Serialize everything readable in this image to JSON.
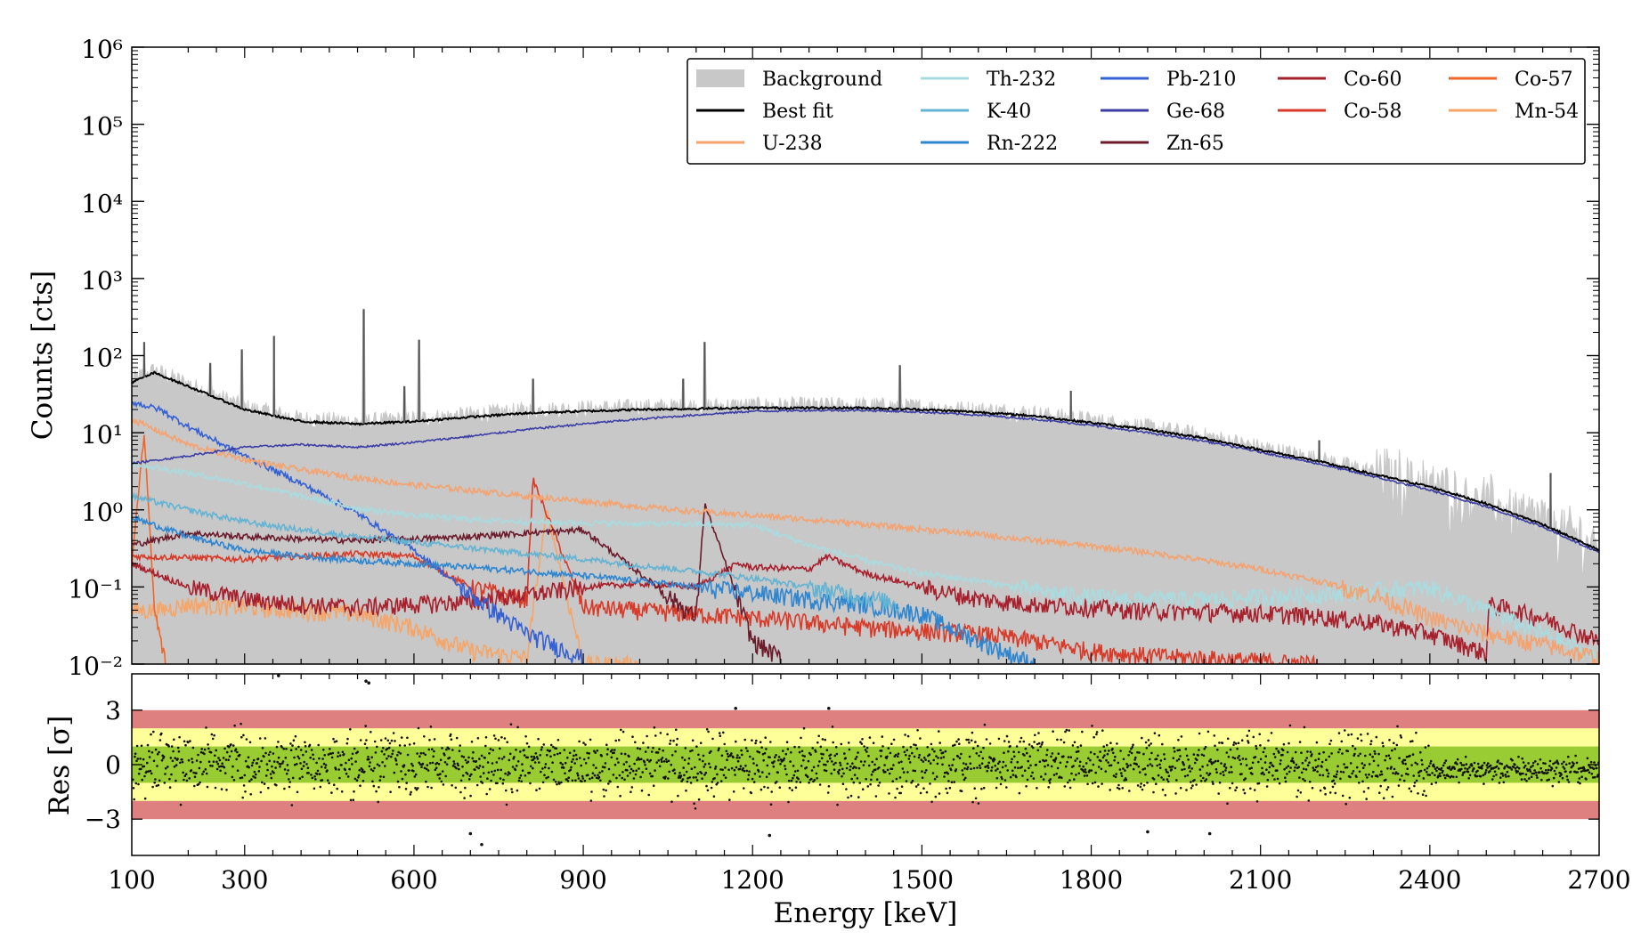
{
  "colors": {
    "background_fill": "#c8c8c8",
    "band_3sigma": "#de8080",
    "band_2sigma": "#ffff99",
    "band_1sigma": "#99cc33"
  },
  "axes_text": {
    "main_ylabel": "Counts [cts]",
    "res_ylabel": "Res [σ]",
    "xlabel": "Energy [keV]"
  },
  "chart_data": [
    {
      "type": "line",
      "title": "",
      "xlabel": "",
      "ylabel": "Counts [cts]",
      "xlim": [
        100,
        2700
      ],
      "ylim": [
        0.01,
        1000000
      ],
      "yscale": "log",
      "y_tick_labels": [
        "10⁻²",
        "10⁻¹",
        "10⁰",
        "10¹",
        "10²",
        "10³",
        "10⁴",
        "10⁵",
        "10⁶"
      ],
      "x_ticks": [
        100,
        300,
        600,
        900,
        1200,
        1500,
        1800,
        2100,
        2400,
        2700
      ],
      "grid": false,
      "legend_position": "top-right",
      "legend": [
        {
          "name": "Background",
          "color": "#c8c8c8",
          "style": "fill"
        },
        {
          "name": "Best fit",
          "color": "#000000",
          "style": "line"
        },
        {
          "name": "U-238",
          "color": "#f5a26e",
          "style": "line"
        },
        {
          "name": "Th-232",
          "color": "#a8dce0",
          "style": "line"
        },
        {
          "name": "K-40",
          "color": "#63b3d3",
          "style": "line"
        },
        {
          "name": "Rn-222",
          "color": "#2e86d1",
          "style": "line"
        },
        {
          "name": "Pb-210",
          "color": "#3560d4",
          "style": "line"
        },
        {
          "name": "Ge-68",
          "color": "#3c3ea6",
          "style": "line"
        },
        {
          "name": "Zn-65",
          "color": "#6b1a2a",
          "style": "line"
        },
        {
          "name": "Co-60",
          "color": "#a81f2c",
          "style": "line"
        },
        {
          "name": "Co-58",
          "color": "#d93a28",
          "style": "line"
        },
        {
          "name": "Co-57",
          "color": "#f0652a",
          "style": "line"
        },
        {
          "name": "Mn-54",
          "color": "#f7a567",
          "style": "line"
        }
      ],
      "series": [
        {
          "name": "Best fit",
          "x": [
            100,
            140,
            200,
            300,
            400,
            500,
            600,
            700,
            800,
            900,
            1000,
            1100,
            1200,
            1300,
            1400,
            1500,
            1600,
            1700,
            1800,
            1900,
            2000,
            2100,
            2200,
            2300,
            2400,
            2500,
            2600,
            2700
          ],
          "y": [
            45,
            60,
            40,
            20,
            14,
            13,
            14,
            16,
            18,
            19,
            20,
            20.5,
            21,
            21,
            21,
            20,
            18.5,
            16.5,
            13.5,
            11,
            8.5,
            6,
            4.3,
            2.9,
            2,
            1.2,
            0.65,
            0.3
          ]
        },
        {
          "name": "Ge-68",
          "x": [
            100,
            200,
            300,
            400,
            500,
            600,
            700,
            800,
            900,
            1000,
            1100,
            1200,
            1300,
            1400,
            1500,
            1600,
            1700,
            1800,
            1900,
            2000,
            2100,
            2200,
            2300,
            2400,
            2500,
            2600,
            2700
          ],
          "y": [
            4,
            5,
            6.5,
            7,
            6.5,
            7.5,
            9,
            11,
            13,
            15,
            17,
            19,
            19.5,
            19.5,
            18.5,
            17,
            15,
            12.5,
            10,
            7.8,
            5.6,
            4,
            2.7,
            1.8,
            1.1,
            0.6,
            0.28
          ]
        },
        {
          "name": "U-238",
          "x": [
            100,
            200,
            300,
            400,
            500,
            600,
            700,
            800,
            900,
            1000,
            1100,
            1200,
            1300,
            1400,
            1500,
            1600,
            1700,
            1800,
            1900,
            2000,
            2100,
            2200,
            2300,
            2400,
            2500,
            2600,
            2700
          ],
          "y": [
            15,
            7,
            4.5,
            3.3,
            2.6,
            2.1,
            1.8,
            1.5,
            1.3,
            1.1,
            0.95,
            0.85,
            0.75,
            0.65,
            0.56,
            0.48,
            0.4,
            0.34,
            0.28,
            0.22,
            0.17,
            0.12,
            0.08,
            0.04,
            0.025,
            0.018,
            0.012
          ]
        },
        {
          "name": "Th-232",
          "x": [
            100,
            200,
            300,
            400,
            500,
            600,
            700,
            800,
            900,
            1000,
            1100,
            1200,
            1300,
            1400,
            1500,
            1600,
            1700,
            1800,
            1900,
            2000,
            2100,
            2200,
            2300,
            2400,
            2500,
            2600,
            2700
          ],
          "y": [
            4,
            3,
            2.2,
            1.5,
            1.05,
            0.85,
            0.75,
            0.7,
            0.68,
            0.66,
            0.65,
            0.64,
            0.35,
            0.22,
            0.15,
            0.12,
            0.09,
            0.075,
            0.07,
            0.07,
            0.075,
            0.08,
            0.09,
            0.1,
            0.05,
            0.025,
            0.012
          ]
        },
        {
          "name": "K-40",
          "x": [
            100,
            200,
            300,
            400,
            500,
            600,
            700,
            800,
            900,
            1000,
            1100,
            1200,
            1300,
            1400,
            1460,
            1600,
            1800,
            2000,
            2100,
            2200,
            2300,
            2400,
            2500,
            2600,
            2700
          ],
          "y": [
            1.5,
            1.0,
            0.7,
            0.55,
            0.45,
            0.38,
            0.32,
            0.27,
            0.23,
            0.19,
            0.16,
            0.13,
            0.1,
            0.075,
            0.06,
            null,
            null,
            null,
            null,
            null,
            null,
            null,
            null,
            null,
            null
          ]
        },
        {
          "name": "Rn-222",
          "x": [
            100,
            200,
            300,
            400,
            500,
            600,
            700,
            800,
            900,
            1000,
            1100,
            1200,
            1300,
            1400,
            1500,
            1600,
            1700,
            1800,
            1900,
            2000,
            2100,
            2200,
            2300,
            2400
          ],
          "y": [
            0.8,
            0.45,
            0.3,
            0.25,
            0.22,
            0.2,
            0.18,
            0.16,
            0.14,
            0.12,
            0.1,
            0.085,
            0.07,
            0.06,
            0.045,
            0.02,
            0.01,
            null,
            null,
            null,
            null,
            null,
            null,
            null
          ]
        },
        {
          "name": "Pb-210",
          "x": [
            100,
            150,
            200,
            300,
            400,
            500,
            600,
            700,
            800,
            900
          ],
          "y": [
            25,
            20,
            12,
            5,
            2.2,
            0.9,
            0.3,
            0.08,
            0.025,
            0.012
          ]
        },
        {
          "name": "Zn-65",
          "x": [
            100,
            200,
            300,
            400,
            500,
            600,
            700,
            800,
            900,
            1000,
            1100,
            1115,
            1200,
            1250
          ],
          "y": [
            0.35,
            0.5,
            0.45,
            0.42,
            0.4,
            0.42,
            0.45,
            0.5,
            0.55,
            0.15,
            0.04,
            1.2,
            0.02,
            0.012
          ]
        },
        {
          "name": "Co-60",
          "x": [
            100,
            200,
            300,
            400,
            500,
            600,
            700,
            800,
            900,
            1000,
            1100,
            1173,
            1200,
            1300,
            1332,
            1400,
            1500,
            1600,
            1700,
            1800,
            1900,
            2000,
            2100,
            2200,
            2300,
            2400,
            2500,
            2505,
            2600,
            2700
          ],
          "y": [
            0.2,
            0.1,
            0.07,
            0.06,
            0.055,
            0.06,
            0.065,
            0.08,
            0.1,
            0.11,
            0.1,
            0.2,
            0.18,
            0.17,
            0.25,
            0.15,
            0.1,
            0.07,
            0.06,
            0.055,
            0.05,
            0.048,
            0.046,
            0.042,
            0.035,
            0.025,
            0.014,
            0.06,
            0.04,
            0.02
          ]
        },
        {
          "name": "Co-58",
          "x": [
            100,
            200,
            300,
            400,
            500,
            600,
            700,
            800,
            811,
            900,
            1000,
            1100,
            1200,
            1300,
            1400,
            1500,
            1600,
            1700,
            1800,
            1900,
            2000,
            2100,
            2200
          ],
          "y": [
            0.25,
            0.24,
            0.23,
            0.25,
            0.27,
            0.25,
            0.1,
            0.07,
            2.5,
            0.055,
            0.05,
            0.045,
            0.04,
            0.035,
            0.03,
            0.027,
            0.025,
            0.02,
            0.015,
            0.013,
            0.012,
            0.011,
            0.01
          ]
        },
        {
          "name": "Co-57",
          "x": [
            100,
            122,
            140,
            160
          ],
          "y": [
            0.2,
            10,
            0.05,
            0.01
          ]
        },
        {
          "name": "Mn-54",
          "x": [
            100,
            150,
            200,
            300,
            400,
            500,
            600,
            700,
            800,
            835,
            900,
            1000
          ],
          "y": [
            0.05,
            0.05,
            0.06,
            0.055,
            0.05,
            0.045,
            0.03,
            0.015,
            0.012,
            1.0,
            0.01,
            0.01
          ]
        }
      ],
      "peaks": [
        {
          "energy": 122,
          "counts": 150
        },
        {
          "energy": 239,
          "counts": 80
        },
        {
          "energy": 295,
          "counts": 120
        },
        {
          "energy": 352,
          "counts": 180
        },
        {
          "energy": 511,
          "counts": 400
        },
        {
          "energy": 583,
          "counts": 40
        },
        {
          "energy": 609,
          "counts": 160
        },
        {
          "energy": 811,
          "counts": 50
        },
        {
          "energy": 1077,
          "counts": 50
        },
        {
          "energy": 1115,
          "counts": 150
        },
        {
          "energy": 1461,
          "counts": 75
        },
        {
          "energy": 1764,
          "counts": 35
        },
        {
          "energy": 2204,
          "counts": 8
        },
        {
          "energy": 2614,
          "counts": 3
        }
      ]
    },
    {
      "type": "scatter",
      "title": "",
      "xlabel": "Energy [keV]",
      "ylabel": "Res [σ]",
      "xlim": [
        100,
        2700
      ],
      "ylim": [
        -5,
        5
      ],
      "x_ticks": [
        100,
        300,
        600,
        900,
        1200,
        1500,
        1800,
        2100,
        2400,
        2700
      ],
      "x_tick_labels": [
        "100",
        "300",
        "600",
        "900",
        "1200",
        "1500",
        "1800",
        "2100",
        "2400",
        "2700"
      ],
      "y_ticks": [
        -3,
        0,
        3
      ],
      "y_tick_labels": [
        "−3",
        "0",
        "3"
      ],
      "bands": [
        {
          "from": -3,
          "to": 3,
          "color": "#de8080"
        },
        {
          "from": -2,
          "to": 2,
          "color": "#ffff99"
        },
        {
          "from": -1,
          "to": 1,
          "color": "#99cc33"
        }
      ],
      "points_note": "",
      "outliers": [
        {
          "x": 360,
          "y": 6.2
        },
        {
          "x": 515,
          "y": 4.6
        },
        {
          "x": 520,
          "y": 4.5
        },
        {
          "x": 700,
          "y": -3.8
        },
        {
          "x": 720,
          "y": -4.4
        },
        {
          "x": 1170,
          "y": 3.1
        },
        {
          "x": 1335,
          "y": 3.1
        },
        {
          "x": 1230,
          "y": -3.9
        },
        {
          "x": 1900,
          "y": -3.7
        },
        {
          "x": 2010,
          "y": -3.8
        }
      ]
    }
  ]
}
